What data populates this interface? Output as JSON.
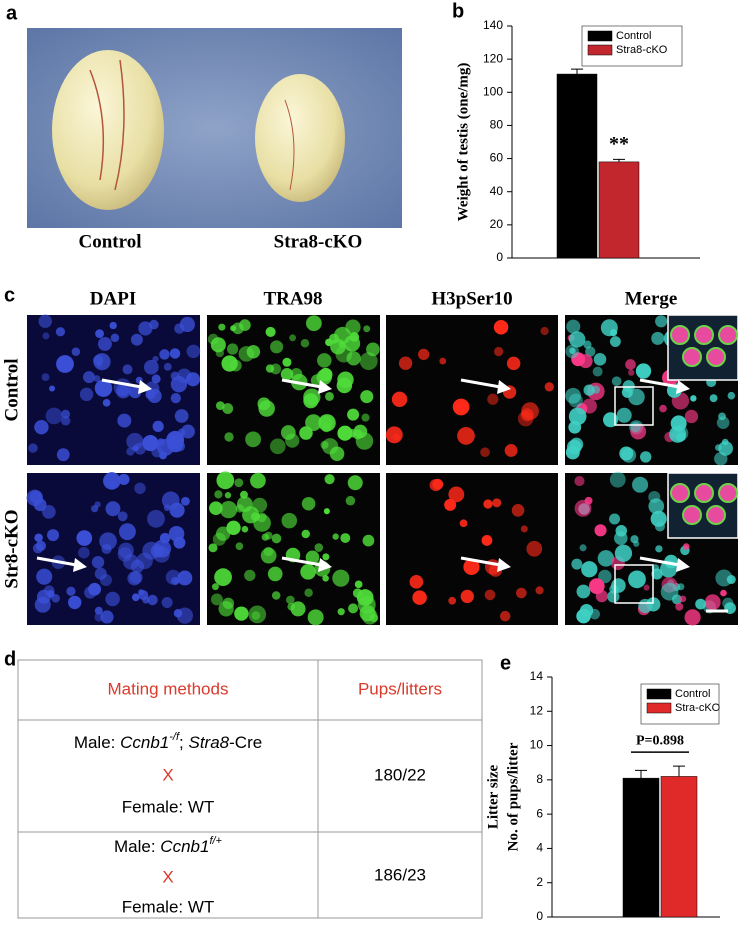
{
  "panel_labels": [
    "a",
    "b",
    "c",
    "d",
    "e"
  ],
  "photo_a": {
    "labels": [
      "Control",
      "Stra8-cKO"
    ]
  },
  "photo_c": {
    "columns": [
      "DAPI",
      "TRA98",
      "H3pSer10",
      "Merge"
    ],
    "rows": [
      "Control",
      "Str8-cKO"
    ]
  },
  "table": {
    "header": [
      "Mating methods",
      "Pups/litters"
    ],
    "rows": [
      {
        "male": [
          "Male: ",
          "Ccnb1",
          "-/f",
          "; ",
          "Stra8",
          "-Cre"
        ],
        "cross": "X",
        "female": "Female: WT",
        "count": "180/22"
      },
      {
        "male": [
          "Male: ",
          "Ccnb1",
          "f/+"
        ],
        "cross": "X",
        "female": "Female: WT",
        "count": "186/23"
      }
    ]
  },
  "chart_data": [
    {
      "type": "bar",
      "y_label": "Weight of testis (one/mg)",
      "categories": [
        null
      ],
      "ylim": [
        0,
        140
      ],
      "yticks": [
        0,
        20,
        40,
        60,
        80,
        100,
        120,
        140
      ],
      "series": [
        {
          "name": "Control",
          "color": "#000000",
          "values": [
            111
          ],
          "errors": [
            3
          ]
        },
        {
          "name": "Stra8-cKO",
          "color": "#c1272d",
          "values": [
            58
          ],
          "errors": [
            1.5
          ]
        }
      ],
      "annotation": "**",
      "legend": "upper right"
    },
    {
      "type": "bar",
      "y_label": [
        "Litter size",
        "No. of pups/litter"
      ],
      "categories": [
        null
      ],
      "ylim": [
        0,
        14
      ],
      "yticks": [
        0,
        2,
        4,
        6,
        8,
        10,
        12,
        14
      ],
      "series": [
        {
          "name": "Control",
          "color": "#000000",
          "values": [
            8.1
          ],
          "errors": [
            0.45
          ]
        },
        {
          "name": "Stra-cKO",
          "color": "#e02a2a",
          "values": [
            8.2
          ],
          "errors": [
            0.6
          ]
        }
      ],
      "annotation": "P=0.898",
      "legend": "upper right"
    }
  ]
}
